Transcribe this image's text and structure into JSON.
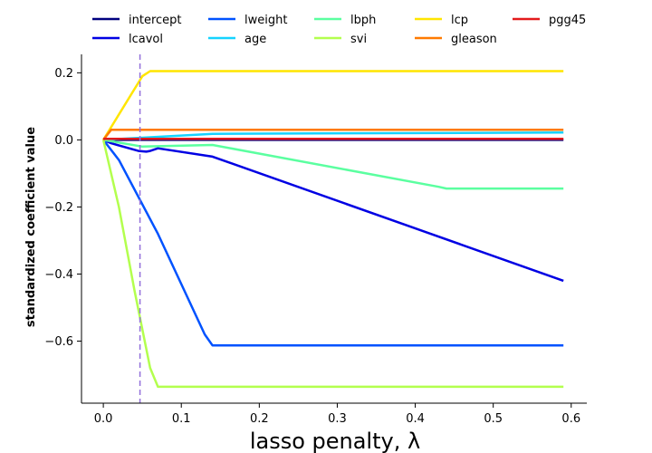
{
  "chart_data": {
    "type": "line",
    "title": "",
    "xlabel": "lasso penalty, λ",
    "ylabel": "standardized coefficient value",
    "xlim": [
      -0.028,
      0.62
    ],
    "ylim": [
      -0.785,
      0.255
    ],
    "xticks": [
      0.0,
      0.1,
      0.2,
      0.3,
      0.4,
      0.5,
      0.6
    ],
    "xtick_labels": [
      "0.0",
      "0.1",
      "0.2",
      "0.3",
      "0.4",
      "0.5",
      "0.6"
    ],
    "yticks": [
      0.2,
      0.0,
      -0.2,
      -0.4,
      -0.6
    ],
    "ytick_labels": [
      "0.2",
      "0.0",
      "−0.2",
      "−0.4",
      "−0.6"
    ],
    "grid": false,
    "legend_position": "top, outside plot, 5 columns",
    "vline": {
      "x": 0.047,
      "color": "#9370db",
      "style": "dashed"
    },
    "series": [
      {
        "name": "intercept",
        "color": "#00007f",
        "x": [
          0,
          0.59
        ],
        "y": [
          0,
          0
        ]
      },
      {
        "name": "lcavol",
        "color": "#0000e3",
        "x": [
          0,
          0.01,
          0.045,
          0.055,
          0.06,
          0.07,
          0.14,
          0.59
        ],
        "y": [
          0,
          -0.01,
          -0.033,
          -0.035,
          -0.033,
          -0.025,
          -0.05,
          -0.42
        ]
      },
      {
        "name": "lweight",
        "color": "#0052ff",
        "x": [
          0,
          0.02,
          0.07,
          0.13,
          0.14,
          0.59
        ],
        "y": [
          0,
          -0.06,
          -0.28,
          -0.58,
          -0.613,
          -0.613
        ]
      },
      {
        "name": "age",
        "color": "#15d3ff",
        "x": [
          0,
          0.14,
          0.59
        ],
        "y": [
          0,
          0.018,
          0.022
        ]
      },
      {
        "name": "lbph",
        "color": "#5bffa0",
        "x": [
          0,
          0.05,
          0.14,
          0.43,
          0.44,
          0.59
        ],
        "y": [
          0,
          -0.02,
          -0.015,
          -0.14,
          -0.145,
          -0.145
        ]
      },
      {
        "name": "svi",
        "color": "#b3ff4e",
        "x": [
          0,
          0.02,
          0.04,
          0.06,
          0.07,
          0.59
        ],
        "y": [
          0,
          -0.2,
          -0.45,
          -0.68,
          -0.736,
          -0.736
        ]
      },
      {
        "name": "lcp",
        "color": "#ffe500",
        "x": [
          0,
          0.05,
          0.06,
          0.59
        ],
        "y": [
          0,
          0.19,
          0.205,
          0.205
        ]
      },
      {
        "name": "gleason",
        "color": "#ff7a00",
        "x": [
          0,
          0.01,
          0.59
        ],
        "y": [
          0,
          0.03,
          0.03
        ]
      },
      {
        "name": "pgg45",
        "color": "#e31a1c",
        "x": [
          0,
          0.59
        ],
        "y": [
          0.003,
          0.003
        ]
      }
    ]
  }
}
